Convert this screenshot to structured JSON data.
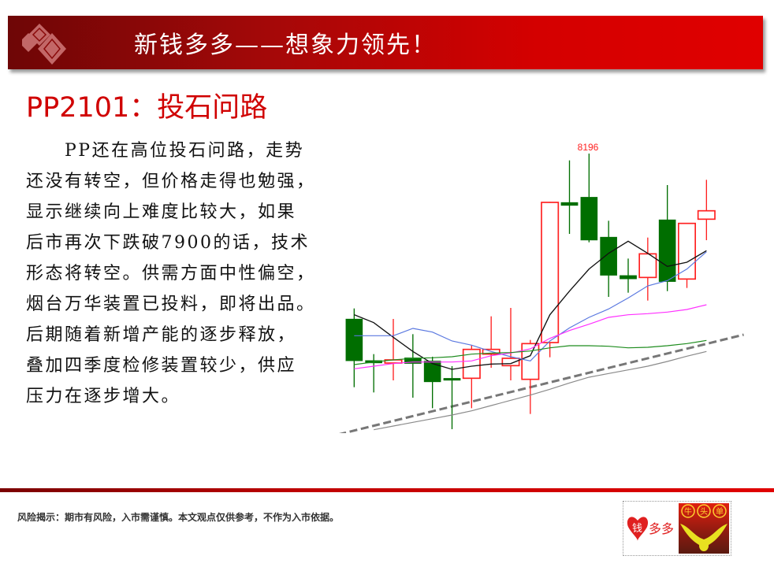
{
  "header": {
    "title": "新钱多多——想象力领先！"
  },
  "slide": {
    "title": "PP2101：投石问路",
    "body_lines": [
      "　　PP还在高位投石问路，走势",
      "还没有转空，但价格走得也勉强，",
      "显示继续向上难度比较大，如果",
      "后市再次下跌破7900的话，技术",
      "形态将转空。供需方面中性偏空，",
      "烟台万华装置已投料，即将出品。",
      "后期随着新增产能的逐步释放，",
      "叠加四季度检修装置较少，供应",
      "压力在逐步增大。"
    ]
  },
  "footer": {
    "risk_notice": "风险揭示：期市有风险，入市需谨慎。本文观点仅供参考，不作为入市依据。",
    "logo_text_left": "钱多多",
    "logo_text_right": "牛头单"
  },
  "chart_data": {
    "type": "candlestick",
    "title": "",
    "annotation": {
      "text": "8196",
      "candle_index": 12,
      "color": "#ff2020"
    },
    "up_color": "#ff2020",
    "down_color": "#006e00",
    "grid": false,
    "candles": [
      {
        "o": 7881,
        "h": 7901,
        "l": 7751,
        "c": 7801
      },
      {
        "o": 7802,
        "h": 7814,
        "l": 7741,
        "c": 7797
      },
      {
        "o": 7797,
        "h": 7881,
        "l": 7764,
        "c": 7803
      },
      {
        "o": 7807,
        "h": 7852,
        "l": 7731,
        "c": 7796
      },
      {
        "o": 7801,
        "h": 7809,
        "l": 7711,
        "c": 7761
      },
      {
        "o": 7768,
        "h": 7791,
        "l": 7671,
        "c": 7765
      },
      {
        "o": 7768,
        "h": 7831,
        "l": 7711,
        "c": 7823
      },
      {
        "o": 7814,
        "h": 7886,
        "l": 7788,
        "c": 7823
      },
      {
        "o": 7792,
        "h": 7902,
        "l": 7764,
        "c": 7806
      },
      {
        "o": 7766,
        "h": 7841,
        "l": 7700,
        "c": 7834
      },
      {
        "o": 7836,
        "h": 8104,
        "l": 7808,
        "c": 8103
      },
      {
        "o": 8103,
        "h": 8183,
        "l": 8043,
        "c": 8097
      },
      {
        "o": 8113,
        "h": 8196,
        "l": 8027,
        "c": 8031
      },
      {
        "o": 8037,
        "h": 8068,
        "l": 7923,
        "c": 7964
      },
      {
        "o": 7964,
        "h": 7996,
        "l": 7931,
        "c": 7957
      },
      {
        "o": 7960,
        "h": 8036,
        "l": 7916,
        "c": 8005
      },
      {
        "o": 8070,
        "h": 8136,
        "l": 7934,
        "c": 7952
      },
      {
        "o": 7957,
        "h": 8063,
        "l": 7940,
        "c": 8063
      },
      {
        "o": 8071,
        "h": 8146,
        "l": 8031,
        "c": 8087
      }
    ],
    "moving_averages": [
      {
        "color": "#111111",
        "values": [
          7889,
          7874,
          7846,
          7819,
          7796,
          7785,
          7791,
          7795,
          7796,
          7811,
          7889,
          7934,
          7976,
          8006,
          8029,
          8006,
          7981,
          7989,
          8011
        ]
      },
      {
        "color": "#5a78e0",
        "values": [
          7849,
          7849,
          7849,
          7863,
          7856,
          7839,
          7831,
          7819,
          7809,
          7801,
          7839,
          7864,
          7884,
          7900,
          7921,
          7944,
          7954,
          7976,
          8009
        ]
      },
      {
        "color": "#ff30ff",
        "values": [
          7786,
          7791,
          7796,
          7799,
          7799,
          7799,
          7801,
          7811,
          7816,
          7824,
          7844,
          7859,
          7871,
          7884,
          7889,
          7891,
          7894,
          7899,
          7908
        ]
      },
      {
        "color": "#1e8c1e",
        "values": [
          7794,
          7799,
          7803,
          7806,
          7807,
          7809,
          7814,
          7816,
          7817,
          7820,
          7826,
          7830,
          7830,
          7829,
          7826,
          7827,
          7830,
          7834,
          7840
        ]
      },
      {
        "color": "#8a8a8a",
        "values": [
          null,
          7670,
          7677,
          7684,
          7691,
          7698,
          7706,
          7716,
          7726,
          7736,
          7747,
          7759,
          7770,
          7777,
          7784,
          7791,
          7800,
          7810,
          7819
        ]
      }
    ],
    "trendline": {
      "color": "#777777",
      "style": "dashed",
      "points": [
        {
          "index": 0,
          "price": 7671
        },
        {
          "index": 19.9,
          "price": 7851
        }
      ]
    }
  }
}
